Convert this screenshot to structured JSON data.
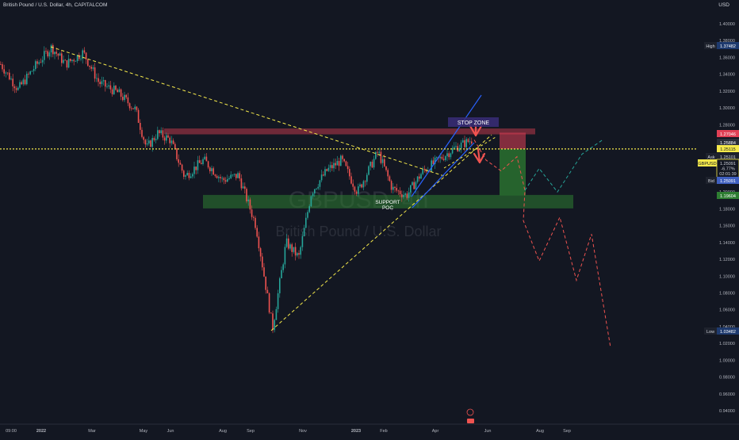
{
  "header": {
    "symbol_title": "British Pound / U.S. Dollar, 4h, CAPITALCOM",
    "currency": "USD"
  },
  "watermark": {
    "ticker": "GBPUSD, 4h",
    "name": "British Pound / U.S. Dollar"
  },
  "colors": {
    "background": "#131722",
    "candle_up": "#26a69a",
    "candle_down": "#ef5350",
    "trendline": "#f5e94b",
    "channel": "#2962ff",
    "stop_zone": "#e04055",
    "support_zone": "#2e7d32",
    "projection_down": "#ef5350",
    "projection_up": "#26a69a",
    "dotted_level": "#f5e94b"
  },
  "chart_data": {
    "type": "candlestick",
    "symbol": "GBPUSD",
    "timeframe": "4h",
    "x_ticks": [
      "09:00",
      "2022",
      "Mar",
      "May",
      "Jun",
      "Aug",
      "Sep",
      "Nov",
      "2023",
      "Feb",
      "Apr",
      "Jun",
      "Aug",
      "Sep"
    ],
    "y_ticks": [
      "1.40000",
      "1.38000",
      "1.36000",
      "1.34000",
      "1.32000",
      "1.30000",
      "1.28000",
      "1.26000",
      "1.24000",
      "1.22000",
      "1.20000",
      "1.18000",
      "1.16000",
      "1.14000",
      "1.12000",
      "1.10000",
      "1.08000",
      "1.06000",
      "1.04000",
      "1.02000",
      "1.00000",
      "0.98000",
      "0.96000",
      "0.94000"
    ],
    "ylim": [
      0.93,
      1.405
    ],
    "price_path": [
      [
        0,
        1.352
      ],
      [
        22,
        1.322
      ],
      [
        44,
        1.35
      ],
      [
        64,
        1.372
      ],
      [
        82,
        1.352
      ],
      [
        104,
        1.366
      ],
      [
        124,
        1.33
      ],
      [
        148,
        1.318
      ],
      [
        170,
        1.298
      ],
      [
        184,
        1.252
      ],
      [
        198,
        1.27
      ],
      [
        214,
        1.262
      ],
      [
        232,
        1.218
      ],
      [
        256,
        1.238
      ],
      [
        280,
        1.214
      ],
      [
        300,
        1.22
      ],
      [
        322,
        1.16
      ],
      [
        343,
        1.038
      ],
      [
        360,
        1.14
      ],
      [
        376,
        1.122
      ],
      [
        392,
        1.2
      ],
      [
        412,
        1.226
      ],
      [
        430,
        1.238
      ],
      [
        450,
        1.2
      ],
      [
        476,
        1.248
      ],
      [
        494,
        1.204
      ],
      [
        512,
        1.196
      ],
      [
        532,
        1.224
      ],
      [
        552,
        1.238
      ],
      [
        572,
        1.252
      ],
      [
        594,
        1.262
      ]
    ],
    "labels": {
      "high_label": "High",
      "high_value": "1.37482",
      "low_label": "Low",
      "low_value": "1.03482",
      "stop_zone_label": "STOP ZONE",
      "support_label_1": "SUPPORT",
      "support_label_2": "POC",
      "price_tags": [
        "1.27046",
        "1.25884",
        "1.25115",
        "1.19604"
      ],
      "ask_label": "Ask",
      "ask_value": "1.25101",
      "bid_label": "Bid",
      "bid_value": "1.25091",
      "symbol_tag": "GBPUSD",
      "last_price": "1.25091",
      "change_pct": "-6.77%",
      "countdown": "02:01:39"
    },
    "zones": {
      "stop_zone": [
        1.2685,
        1.2755
      ],
      "support_poc": [
        1.1805,
        1.1965
      ],
      "short_risk": [
        1.251,
        1.2705
      ],
      "short_target": [
        1.196,
        1.251
      ]
    },
    "levels": {
      "dotted_price": 1.2512
    },
    "projection_down": [
      [
        1.262
      ],
      [
        1.238
      ],
      [
        1.225
      ],
      [
        1.242
      ],
      [
        1.202
      ],
      [
        1.166
      ],
      [
        1.118
      ],
      [
        1.17
      ],
      [
        1.095
      ],
      [
        1.15
      ],
      [
        1.015
      ]
    ],
    "projection_up": [
      [
        1.202
      ],
      [
        1.228
      ],
      [
        1.2
      ],
      [
        1.245
      ],
      [
        1.262
      ]
    ]
  }
}
